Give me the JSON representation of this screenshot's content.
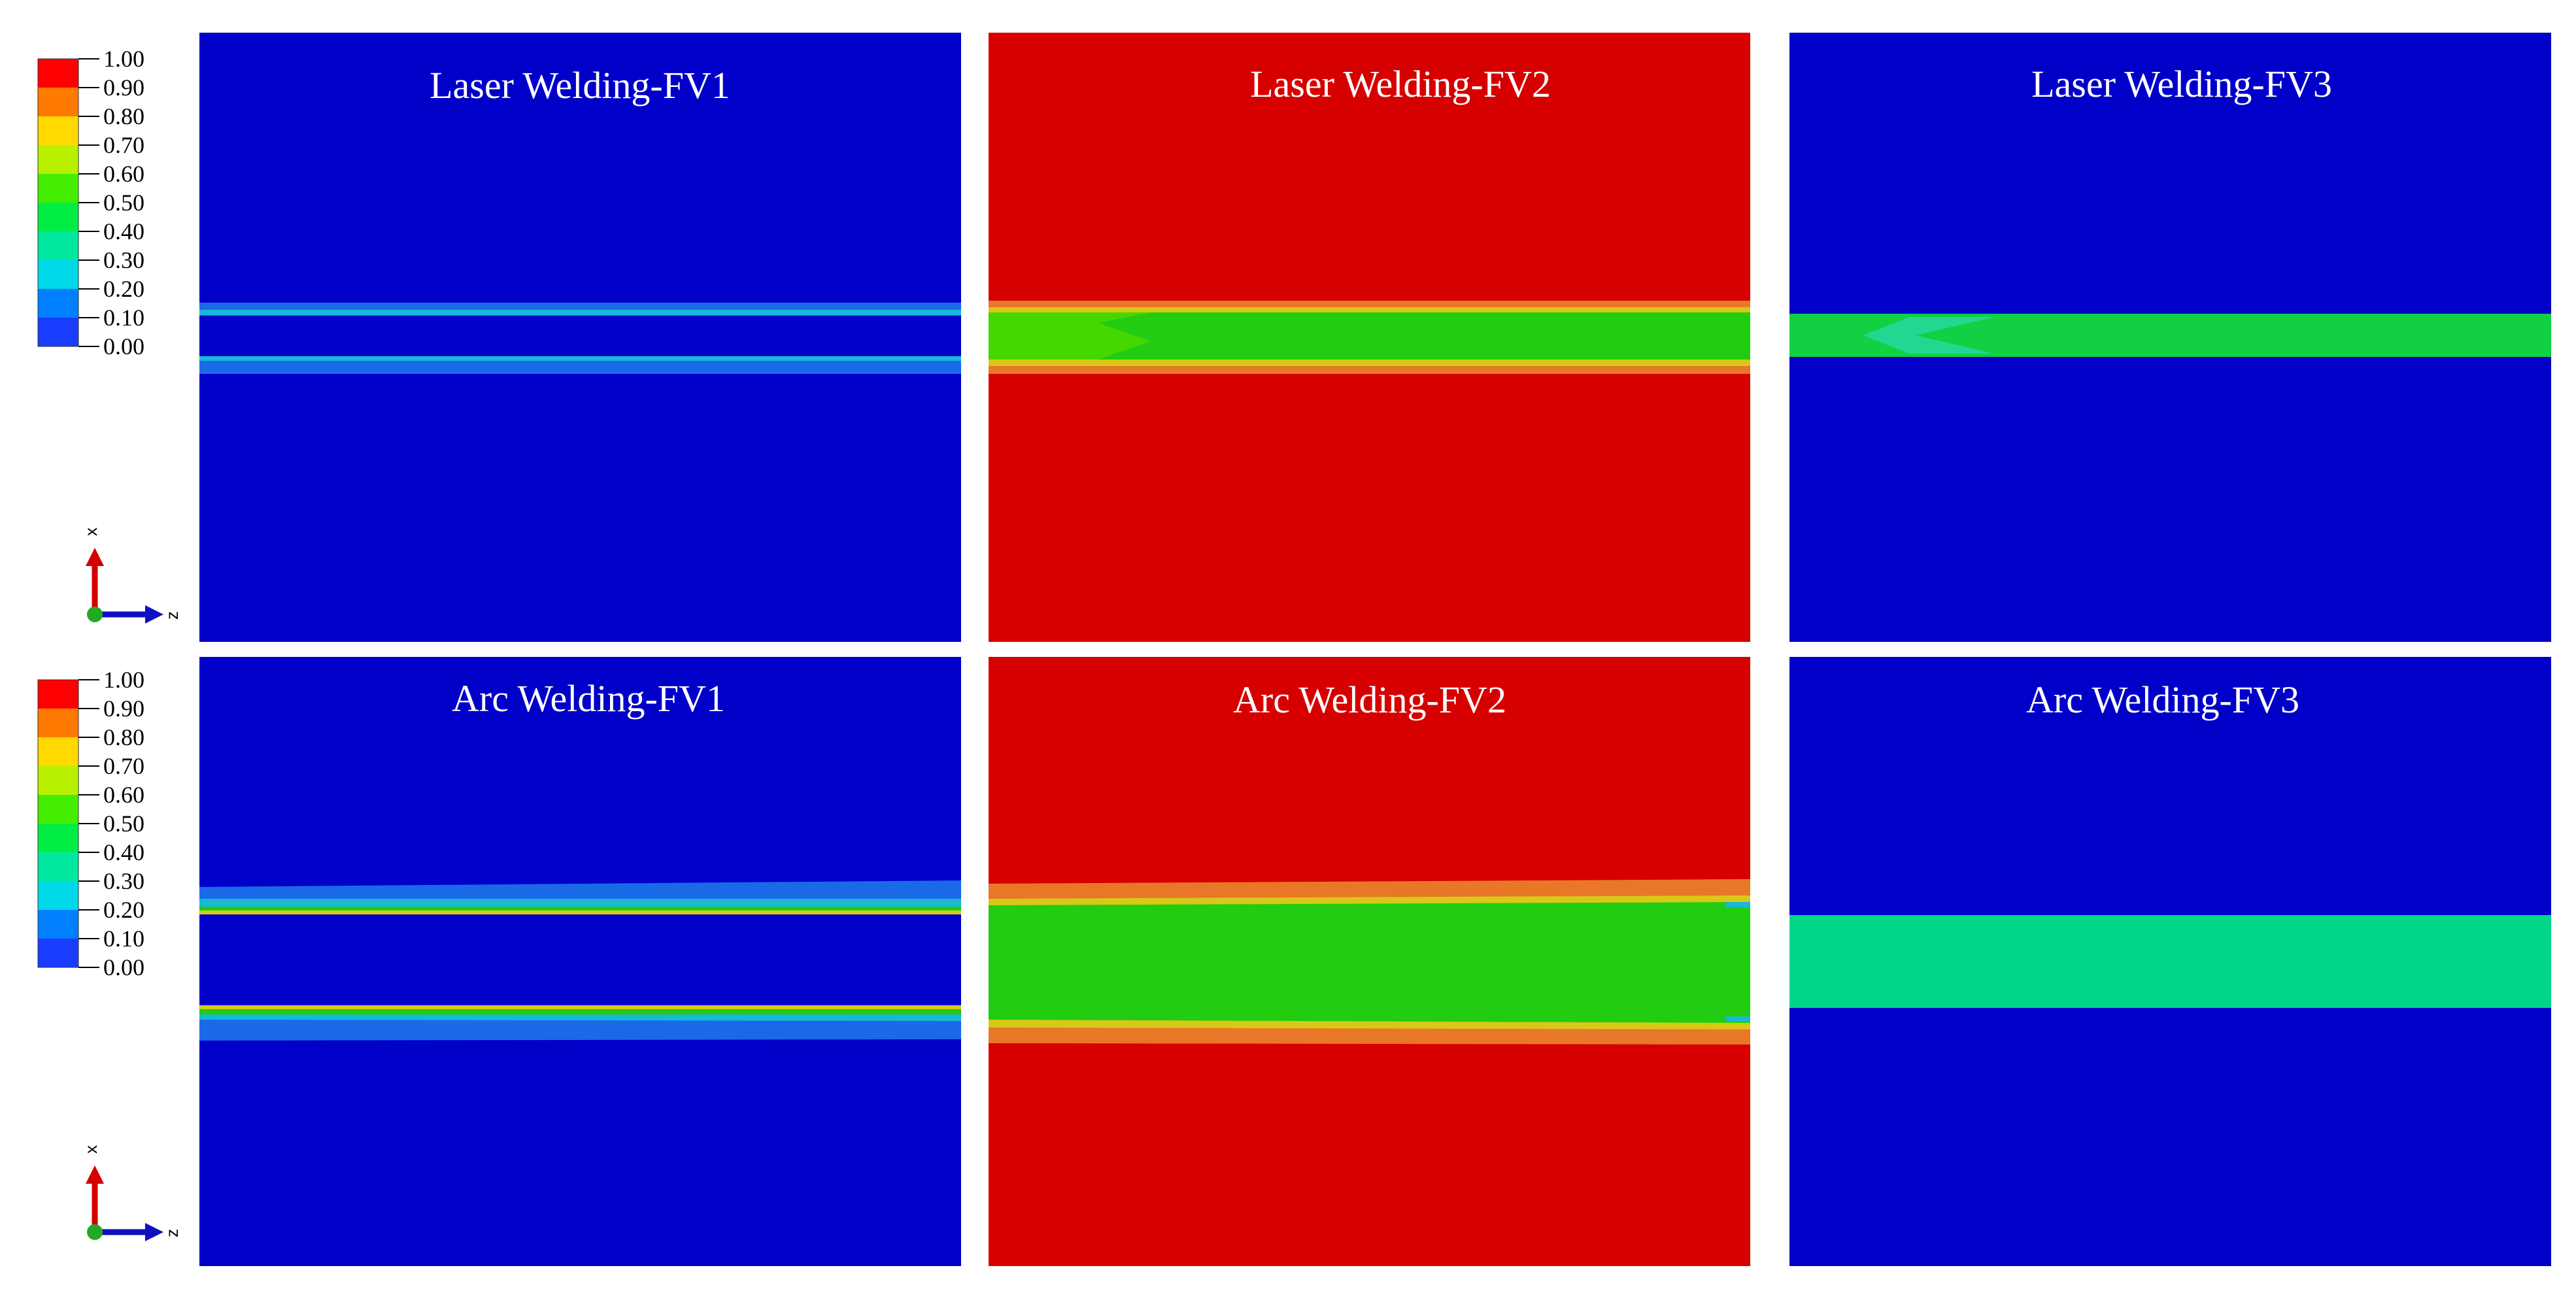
{
  "colors": {
    "blue": "#0000C8",
    "red": "#D60000",
    "green_fv2_laser": "#22CC11",
    "green_fv3_laser": "#11D044",
    "teal_fv3_arc": "#00D68A",
    "cyan": "#18B8D8",
    "lightblue": "#1A6AE8",
    "orange": "#E87828",
    "yellow": "#D8C818",
    "axis_x": "#D40000",
    "axis_z": "#1010C0",
    "axis_origin": "#22AA22"
  },
  "legend": {
    "ticks": [
      "1.00",
      "0.90",
      "0.80",
      "0.70",
      "0.60",
      "0.50",
      "0.40",
      "0.30",
      "0.20",
      "0.10",
      "0.00"
    ],
    "bands": [
      "#FF0000",
      "#FF7A00",
      "#FFD900",
      "#B8F000",
      "#44EE00",
      "#00EE44",
      "#00E8A0",
      "#00D8E8",
      "#0080FF",
      "#1A3CFF"
    ]
  },
  "axes_triad": {
    "x_label": "x",
    "z_label": "z"
  },
  "panels": [
    {
      "id": "laser-fv1",
      "title": "Laser Welding-FV1",
      "field": "FV1"
    },
    {
      "id": "laser-fv2",
      "title": "Laser Welding-FV2",
      "field": "FV2"
    },
    {
      "id": "laser-fv3",
      "title": "Laser Welding-FV3",
      "field": "FV3"
    },
    {
      "id": "arc-fv1",
      "title": "Arc Welding-FV1",
      "field": "FV1"
    },
    {
      "id": "arc-fv2",
      "title": "Arc Welding-FV2",
      "field": "FV2"
    },
    {
      "id": "arc-fv3",
      "title": "Arc Welding-FV3",
      "field": "FV3"
    }
  ]
}
